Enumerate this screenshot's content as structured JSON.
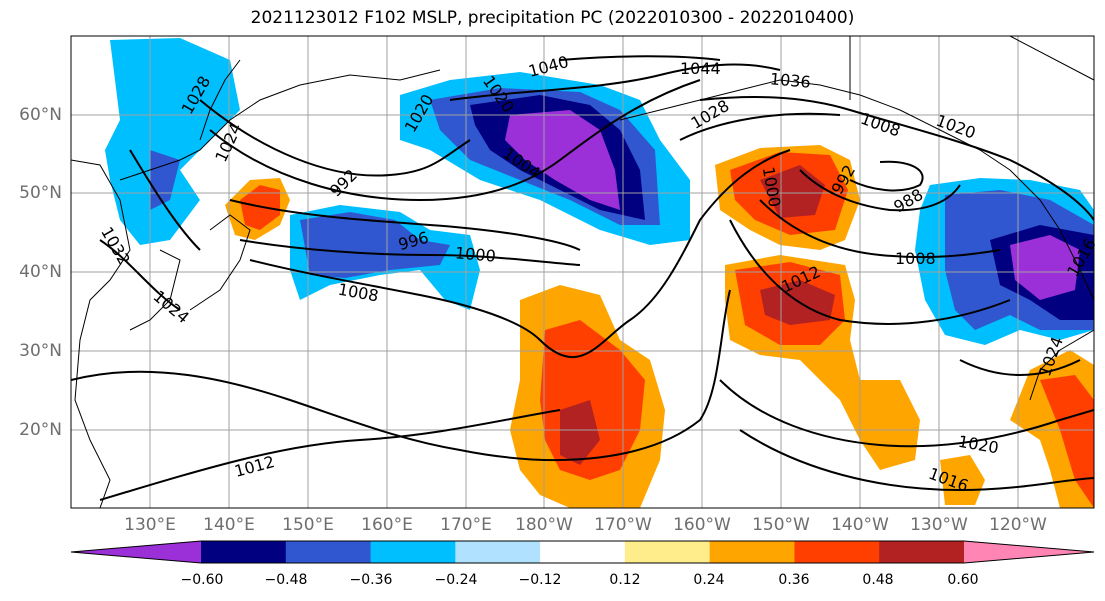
{
  "title": "2021123012 F102 MSLP, precipitation PC (2022010300 - 2022010400)",
  "lat_labels": [
    "60°N",
    "50°N",
    "40°N",
    "30°N",
    "20°N"
  ],
  "lon_labels": [
    "130°E",
    "140°E",
    "150°E",
    "160°E",
    "170°E",
    "180°W",
    "170°W",
    "160°W",
    "150°W",
    "140°W",
    "130°W",
    "120°W"
  ],
  "colorbar": {
    "colors": [
      "#9b30d9",
      "#000080",
      "#3157d0",
      "#00bfff",
      "#b0e2ff",
      "#ffffff",
      "#ffec8b",
      "#ffa500",
      "#ff3f00",
      "#b22222",
      "#ff85b4"
    ],
    "tick_labels": [
      "−0.60",
      "−0.48",
      "−0.36",
      "−0.24",
      "−0.12",
      "0.12",
      "0.24",
      "0.36",
      "0.48",
      "0.60"
    ]
  },
  "contour_labels": {
    "c1040": "1040",
    "c1044": "1044",
    "c1036": "1036",
    "c1028": "1028",
    "c1008_nw": "1008",
    "c1020_ak": "1020",
    "c1032_kor": "1032",
    "c1024_sea": "1024",
    "c1028_jp": "1028",
    "c1020_jp": "1020",
    "c1024_ch": "1024",
    "c1020_wk": "1020",
    "c1004": "1004",
    "c992_w": "992",
    "c996": "996",
    "c1000_w": "1000",
    "c1008_w": "1008",
    "c1000_e": "1000",
    "c992_e": "992",
    "c988": "988",
    "c1008_e": "1008",
    "c1012_c": "1012",
    "c1020_e": "1020",
    "c1016": "1016",
    "c1012_s": "1012",
    "c1024_se": "1024",
    "c1016_ne": "1016"
  }
}
